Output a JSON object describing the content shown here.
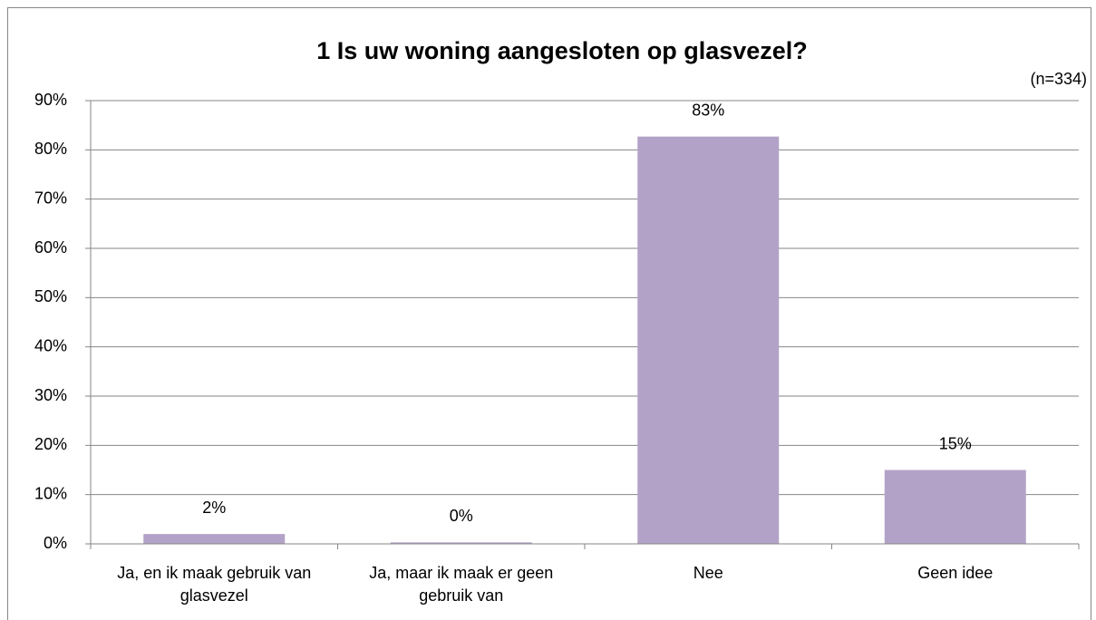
{
  "chart_data": {
    "type": "bar",
    "title": "1 Is uw woning aangesloten op glasvezel?",
    "subtitle": "(n=334)",
    "categories": [
      "Ja, en ik maak gebruik van glasvezel",
      "Ja, maar ik maak er geen gebruik van",
      "Nee",
      "Geen idee"
    ],
    "values": [
      2,
      0.3,
      82.7,
      15
    ],
    "value_labels": [
      "2%",
      "0%",
      "83%",
      "15%"
    ],
    "color": "#b3a2c7",
    "ylim": [
      0,
      90
    ],
    "yticks": [
      {
        "value": 0,
        "label": "0%"
      },
      {
        "value": 10,
        "label": "10%"
      },
      {
        "value": 20,
        "label": "20%"
      },
      {
        "value": 30,
        "label": "30%"
      },
      {
        "value": 40,
        "label": "40%"
      },
      {
        "value": 50,
        "label": "50%"
      },
      {
        "value": 60,
        "label": "60%"
      },
      {
        "value": 70,
        "label": "70%"
      },
      {
        "value": 80,
        "label": "80%"
      },
      {
        "value": 90,
        "label": "90%"
      }
    ],
    "grid": true
  }
}
